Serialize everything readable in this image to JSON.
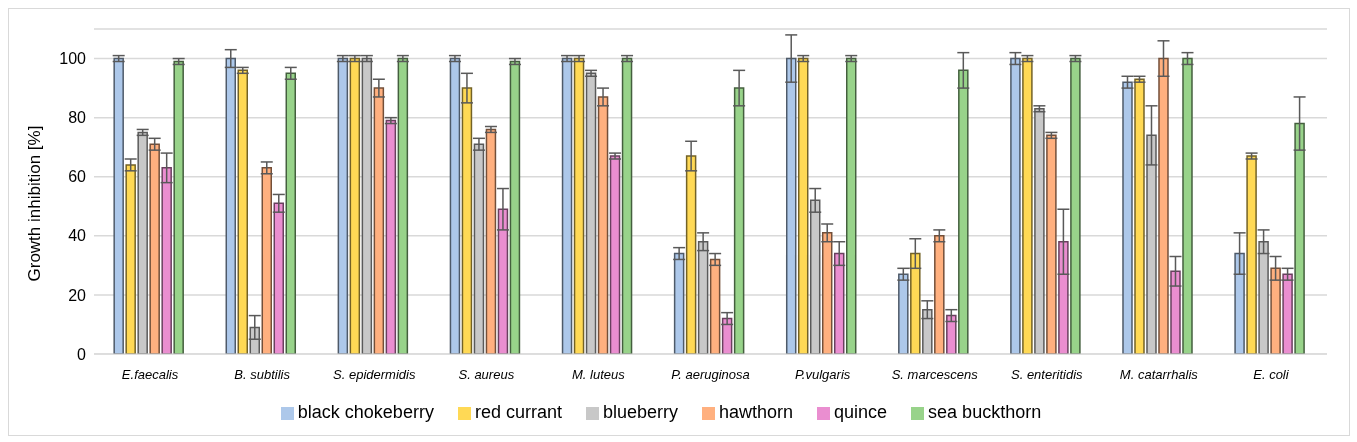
{
  "chart_data": {
    "type": "bar",
    "ylabel": "Growth inhibition [%]",
    "categories": [
      "E.faecalis",
      "B. subtilis",
      "S. epidermidis",
      "S. aureus",
      "M. luteus",
      "P. aeruginosa",
      "P.vulgaris",
      "S. marcescens",
      "S. enteritidis",
      "M. catarrhalis",
      "E. coli"
    ],
    "series": [
      {
        "name": "black chokeberry",
        "color": "#adc8ea",
        "values": [
          100,
          100,
          100,
          100,
          100,
          34,
          100,
          27,
          100,
          92,
          34
        ],
        "errors": [
          1,
          3,
          1,
          1,
          1,
          2,
          8,
          2,
          2,
          2,
          7
        ]
      },
      {
        "name": "red currant",
        "color": "#ffd955",
        "values": [
          64,
          96,
          100,
          90,
          100,
          67,
          100,
          34,
          100,
          93,
          67
        ],
        "errors": [
          2,
          1,
          1,
          5,
          1,
          5,
          1,
          5,
          1,
          1,
          1
        ]
      },
      {
        "name": "blueberry",
        "color": "#c8c8c8",
        "values": [
          75,
          9,
          100,
          71,
          95,
          38,
          52,
          15,
          83,
          74,
          38
        ],
        "errors": [
          1,
          4,
          1,
          2,
          1,
          3,
          4,
          3,
          1,
          10,
          4
        ]
      },
      {
        "name": "hawthorn",
        "color": "#ffb07f",
        "values": [
          71,
          63,
          90,
          76,
          87,
          32,
          41,
          40,
          74,
          100,
          29
        ],
        "errors": [
          2,
          2,
          3,
          1,
          3,
          2,
          3,
          2,
          1,
          6,
          4
        ]
      },
      {
        "name": "quince",
        "color": "#ea8ed0",
        "values": [
          63,
          51,
          79,
          49,
          67,
          12,
          34,
          13,
          38,
          28,
          27
        ],
        "errors": [
          5,
          3,
          1,
          7,
          1,
          2,
          4,
          2,
          11,
          5,
          2
        ]
      },
      {
        "name": "sea buckthorn",
        "color": "#98d38a",
        "values": [
          99,
          95,
          100,
          99,
          100,
          90,
          100,
          96,
          100,
          100,
          78
        ],
        "errors": [
          1,
          2,
          1,
          1,
          1,
          6,
          1,
          6,
          1,
          2,
          9
        ]
      }
    ],
    "ylim": [
      0,
      110
    ],
    "yticks": [
      0,
      20,
      40,
      60,
      80,
      100
    ],
    "grid": "y",
    "legend": "bottom"
  }
}
